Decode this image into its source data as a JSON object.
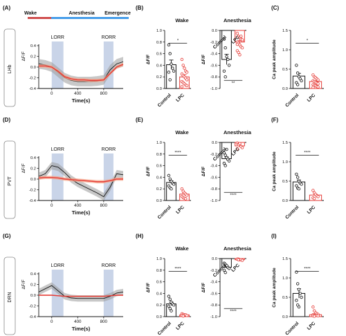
{
  "colors": {
    "control": "#111111",
    "lpc": "#e53935",
    "lpc_band": "#f4a58a",
    "control_band": "#9a9a9a",
    "stim": "#c9d4e8",
    "wake_bar": "#c62828",
    "anes_bar": "#1e88e5"
  },
  "timeline": {
    "wake": "Wake",
    "anesthesia": "Anesthesia",
    "emergence": "Emergence"
  },
  "chart_data": [
    {
      "type": "line",
      "panel": "(A)",
      "region": "LHb",
      "xlabel": "Time(s)",
      "ylabel": "ΔF/F",
      "xlim": [
        -200,
        1100
      ],
      "ylim": [
        -0.4,
        0.4
      ],
      "xticks": [
        "0",
        "400",
        "800"
      ],
      "yticks": [
        "0.4",
        "0.2",
        "0.0",
        "-0.2",
        "-0.4"
      ],
      "events": [
        {
          "label": "LORR",
          "start": 0,
          "end": 180
        },
        {
          "label": "RORR",
          "start": 800,
          "end": 950
        }
      ],
      "series": [
        {
          "group": "control",
          "x": [
            -200,
            -100,
            0,
            100,
            200,
            300,
            400,
            500,
            600,
            700,
            800,
            900,
            1000,
            1100
          ],
          "y": [
            0.06,
            0.04,
            0.0,
            -0.1,
            -0.2,
            -0.25,
            -0.27,
            -0.27,
            -0.27,
            -0.26,
            -0.24,
            -0.05,
            0.06,
            0.1
          ],
          "sem": 0.09
        },
        {
          "group": "lpc",
          "x": [
            -200,
            -100,
            0,
            100,
            200,
            300,
            400,
            500,
            600,
            700,
            800,
            900,
            1000,
            1100
          ],
          "y": [
            0.02,
            0.02,
            0.0,
            -0.08,
            -0.18,
            -0.22,
            -0.24,
            -0.24,
            -0.25,
            -0.25,
            -0.24,
            -0.12,
            0.0,
            0.05
          ],
          "sem": 0.03
        }
      ]
    },
    {
      "type": "bar",
      "panel": "(B)",
      "title": "Wake",
      "ylabel": "ΔF/F",
      "ylim": [
        0,
        1.0
      ],
      "yticks": [
        "0.0",
        "0.2",
        "0.4",
        "0.6",
        "0.8",
        "1.0"
      ],
      "categories": [
        "Control",
        "LPC"
      ],
      "means": [
        0.41,
        0.2
      ],
      "sem": [
        0.08,
        0.04
      ],
      "significance": "*",
      "points": [
        [
          0.75,
          0.6,
          0.42,
          0.35,
          0.3,
          0.28,
          0.15
        ],
        [
          0.5,
          0.4,
          0.35,
          0.3,
          0.28,
          0.25,
          0.22,
          0.2,
          0.18,
          0.15,
          0.12,
          0.1,
          0.08,
          0.06,
          0.05,
          0.03
        ]
      ]
    },
    {
      "type": "bar",
      "panel": "(B)",
      "title": "Anesthesia",
      "ylabel": "ΔF/F",
      "ylim": [
        -1.0,
        0
      ],
      "yticks": [
        "0.0",
        "-0.2",
        "-0.4",
        "-0.6",
        "-0.8",
        "-1.0"
      ],
      "categories": [
        "Control",
        "LPC"
      ],
      "means": [
        -0.5,
        -0.2
      ],
      "sem": [
        0.09,
        0.03
      ],
      "significance": "**",
      "points": [
        [
          -0.15,
          -0.3,
          -0.45,
          -0.5,
          -0.6,
          -0.7,
          -0.8
        ],
        [
          -0.05,
          -0.1,
          -0.12,
          -0.15,
          -0.18,
          -0.2,
          -0.22,
          -0.25,
          -0.28,
          -0.3,
          -0.35,
          -0.38,
          -0.42,
          -0.1,
          -0.16,
          -0.24
        ]
      ]
    },
    {
      "type": "bar",
      "panel": "(C)",
      "ylabel": "Ca peak amplitude",
      "ylim": [
        0,
        1.5
      ],
      "yticks": [
        "0.0",
        "0.5",
        "1.0",
        "1.5"
      ],
      "categories": [
        "Control",
        "LPC"
      ],
      "means": [
        0.32,
        0.18
      ],
      "sem": [
        0.07,
        0.02
      ],
      "significance": "*",
      "points": [
        [
          0.6,
          0.4,
          0.3,
          0.25,
          0.2,
          0.15,
          0.1
        ],
        [
          0.35,
          0.3,
          0.28,
          0.25,
          0.22,
          0.2,
          0.18,
          0.16,
          0.14,
          0.12,
          0.1,
          0.08,
          0.07,
          0.05,
          0.04,
          0.03
        ]
      ]
    },
    {
      "type": "line",
      "panel": "(D)",
      "region": "PVT",
      "xlabel": "Time(s)",
      "ylabel": "ΔF/F",
      "xlim": [
        -200,
        1100
      ],
      "ylim": [
        -0.4,
        0.4
      ],
      "xticks": [
        "0",
        "400",
        "800"
      ],
      "yticks": [
        "0.4",
        "0.2",
        "0.0",
        "-0.2",
        "-0.4"
      ],
      "events": [
        {
          "label": "LORR",
          "start": 0,
          "end": 180
        },
        {
          "label": "RORR",
          "start": 800,
          "end": 950
        }
      ],
      "series": [
        {
          "group": "control",
          "x": [
            -200,
            -100,
            0,
            100,
            200,
            300,
            400,
            500,
            600,
            700,
            800,
            900,
            1000,
            1100
          ],
          "y": [
            0.05,
            0.1,
            0.25,
            0.22,
            0.12,
            0.0,
            -0.08,
            -0.14,
            -0.2,
            -0.26,
            -0.33,
            -0.15,
            0.1,
            0.08
          ],
          "sem": 0.07
        },
        {
          "group": "lpc",
          "x": [
            -200,
            -100,
            0,
            100,
            200,
            300,
            400,
            500,
            600,
            700,
            800,
            900,
            1000,
            1100
          ],
          "y": [
            0.02,
            0.03,
            0.03,
            0.02,
            0.0,
            -0.01,
            -0.02,
            -0.03,
            -0.04,
            -0.05,
            -0.05,
            -0.03,
            0.0,
            0.0
          ],
          "sem": 0.03
        }
      ]
    },
    {
      "type": "bar",
      "panel": "(E)",
      "title": "Wake",
      "ylabel": "ΔF/F",
      "ylim": [
        0,
        1.0
      ],
      "yticks": [
        "0.0",
        "0.2",
        "0.4",
        "0.6",
        "0.8",
        "1.0"
      ],
      "categories": [
        "Control",
        "LPC"
      ],
      "means": [
        0.31,
        0.11
      ],
      "sem": [
        0.03,
        0.02
      ],
      "significance": "****",
      "points": [
        [
          0.43,
          0.37,
          0.33,
          0.3,
          0.28,
          0.25,
          0.22,
          0.2
        ],
        [
          0.2,
          0.16,
          0.13,
          0.11,
          0.09,
          0.07,
          0.05,
          0.04,
          0.03
        ]
      ]
    },
    {
      "type": "bar",
      "panel": "(E)",
      "title": "Anesthesia",
      "ylabel": "ΔF/F",
      "ylim": [
        -1.0,
        0
      ],
      "yticks": [
        "0.0",
        "-0.2",
        "-0.4",
        "-0.6",
        "-0.8",
        "-1.0"
      ],
      "categories": [
        "Control",
        "LPC"
      ],
      "means": [
        -0.28,
        -0.06
      ],
      "sem": [
        0.03,
        0.01
      ],
      "significance": "****",
      "points": [
        [
          -0.18,
          -0.22,
          -0.26,
          -0.29,
          -0.32,
          -0.36,
          -0.4,
          -0.12
        ],
        [
          -0.01,
          -0.03,
          -0.05,
          -0.07,
          -0.09,
          -0.11,
          -0.04,
          -0.02
        ]
      ]
    },
    {
      "type": "bar",
      "panel": "(F)",
      "ylabel": "Ca peak amplitude",
      "ylim": [
        0,
        1.5
      ],
      "yticks": [
        "0.0",
        "0.5",
        "1.0",
        "1.5"
      ],
      "categories": [
        "Control",
        "LPC"
      ],
      "means": [
        0.48,
        0.14
      ],
      "sem": [
        0.05,
        0.02
      ],
      "significance": "****",
      "points": [
        [
          0.68,
          0.6,
          0.5,
          0.45,
          0.42,
          0.38,
          0.32,
          0.3
        ],
        [
          0.26,
          0.2,
          0.16,
          0.12,
          0.1,
          0.07,
          0.05
        ]
      ]
    },
    {
      "type": "line",
      "panel": "(G)",
      "region": "DRN",
      "xlabel": "Time(s)",
      "ylabel": "ΔF/F",
      "xlim": [
        -200,
        1100
      ],
      "ylim": [
        -0.4,
        0.4
      ],
      "xticks": [
        "0",
        "400",
        "800"
      ],
      "yticks": [
        "0.4",
        "0.2",
        "0.0",
        "-0.2",
        "-0.4"
      ],
      "events": [
        {
          "label": "LORR",
          "start": 0,
          "end": 180
        },
        {
          "label": "RORR",
          "start": 800,
          "end": 950
        }
      ],
      "series": [
        {
          "group": "control",
          "x": [
            -200,
            -100,
            0,
            100,
            200,
            300,
            400,
            500,
            600,
            700,
            800,
            900,
            1000,
            1100
          ],
          "y": [
            0.06,
            0.12,
            0.18,
            0.08,
            -0.02,
            -0.05,
            -0.06,
            -0.06,
            -0.06,
            -0.06,
            -0.06,
            -0.02,
            0.04,
            0.06
          ],
          "sem": 0.06
        },
        {
          "group": "lpc",
          "x": [
            -200,
            -100,
            0,
            100,
            200,
            300,
            400,
            500,
            600,
            700,
            800,
            900,
            1000,
            1100
          ],
          "y": [
            0.0,
            0.0,
            0.0,
            -0.01,
            -0.02,
            -0.02,
            -0.02,
            -0.02,
            -0.02,
            -0.02,
            -0.02,
            -0.01,
            0.0,
            0.0
          ],
          "sem": 0.01
        }
      ]
    },
    {
      "type": "bar",
      "panel": "(H)",
      "title": "Wake",
      "ylabel": "ΔF/F",
      "ylim": [
        0,
        1.0
      ],
      "yticks": [
        "0.0",
        "0.2",
        "0.4",
        "0.6",
        "0.8",
        "1.0"
      ],
      "categories": [
        "Control",
        "LPC"
      ],
      "means": [
        0.22,
        0.03
      ],
      "sem": [
        0.03,
        0.005
      ],
      "significance": "****",
      "points": [
        [
          0.35,
          0.3,
          0.25,
          0.22,
          0.2,
          0.18,
          0.14,
          0.1
        ],
        [
          0.05,
          0.04,
          0.03,
          0.03,
          0.02,
          0.02,
          0.01
        ]
      ]
    },
    {
      "type": "bar",
      "panel": "(H)",
      "title": "Anesthesia",
      "ylabel": "ΔF/F",
      "ylim": [
        -1.0,
        0
      ],
      "yticks": [
        "0.0",
        "-0.2",
        "-0.4",
        "-0.6",
        "-0.8",
        "-1.0"
      ],
      "categories": [
        "Control",
        "LPC"
      ],
      "means": [
        -0.15,
        -0.02
      ],
      "sem": [
        0.02,
        0.003
      ],
      "significance": "****",
      "points": [
        [
          -0.08,
          -0.1,
          -0.13,
          -0.15,
          -0.17,
          -0.2,
          -0.24,
          -0.12
        ],
        [
          -0.01,
          -0.01,
          -0.02,
          -0.02,
          -0.03,
          -0.01,
          -0.02
        ]
      ]
    },
    {
      "type": "bar",
      "panel": "(I)",
      "ylabel": "Ca peak amplitude",
      "ylim": [
        0,
        1.5
      ],
      "yticks": [
        "0.0",
        "0.5",
        "1.0",
        "1.5"
      ],
      "categories": [
        "Control",
        "LPC"
      ],
      "means": [
        0.6,
        0.05
      ],
      "sem": [
        0.12,
        0.01
      ],
      "significance": "****",
      "points": [
        [
          1.15,
          0.85,
          0.7,
          0.6,
          0.5,
          0.42,
          0.3,
          0.25
        ],
        [
          0.25,
          0.15,
          0.1,
          0.08,
          0.06,
          0.05,
          0.04,
          0.03,
          0.03,
          0.02,
          0.02,
          0.01
        ]
      ]
    }
  ]
}
